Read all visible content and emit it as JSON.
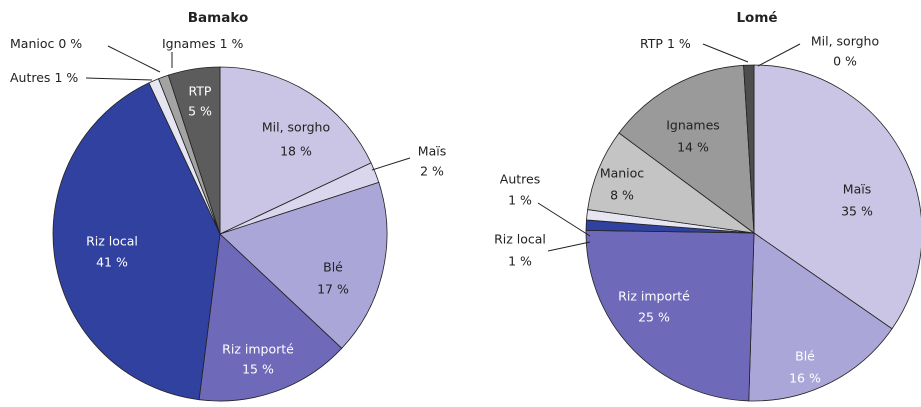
{
  "chart_data": [
    {
      "type": "pie",
      "title": "Bamako",
      "categories": [
        "Mil, sorgho",
        "Maïs",
        "Blé",
        "Riz importé",
        "Riz local",
        "Autres",
        "Manioc",
        "Ignames",
        "RTP"
      ],
      "values": [
        18,
        2,
        17,
        15,
        41,
        1,
        0,
        1,
        5
      ],
      "value_labels": [
        "18 %",
        "2 %",
        "17 %",
        "15 %",
        "41 %",
        "1 %",
        "0 %",
        "1 %",
        "5 %"
      ],
      "colors": [
        "#cac5e4",
        "#d9d6ee",
        "#aba6d8",
        "#6f69b9",
        "#3141a0",
        "#e6e6f2",
        "#ffffff",
        "#a3a3a3",
        "#5c5c5c"
      ]
    },
    {
      "type": "pie",
      "title": "Lomé",
      "categories": [
        "Mil, sorgho",
        "Maïs",
        "Blé",
        "Riz importé",
        "Riz local",
        "Autres",
        "Manioc",
        "Ignames",
        "RTP"
      ],
      "values": [
        0,
        35,
        16,
        25,
        1,
        1,
        8,
        14,
        1
      ],
      "value_labels": [
        "0 %",
        "35 %",
        "16 %",
        "25 %",
        "1 %",
        "1 %",
        "8 %",
        "14 %",
        "1 %"
      ],
      "colors": [
        "#ffffff",
        "#cac5e4",
        "#aba6d8",
        "#6f69b9",
        "#3141a0",
        "#e6e6f2",
        "#c4c4c4",
        "#9a9a9a",
        "#4d4d4d"
      ]
    }
  ]
}
